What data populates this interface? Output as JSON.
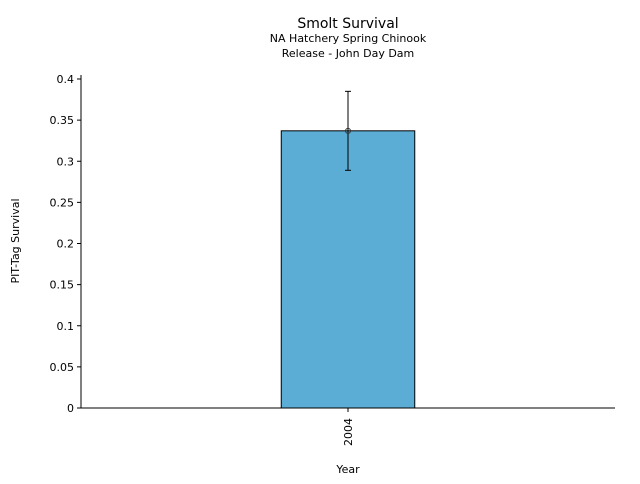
{
  "chart_data": {
    "type": "bar",
    "title": "Smolt Survival",
    "subtitle": [
      "NA Hatchery Spring Chinook",
      "Release - John Day Dam"
    ],
    "xlabel": "Year",
    "ylabel": "PIT-Tag Survival",
    "categories": [
      "2004"
    ],
    "values": [
      0.337
    ],
    "error_low": [
      0.289
    ],
    "error_high": [
      0.385
    ],
    "ylim": [
      0,
      0.4
    ],
    "yticks": [
      0,
      0.05,
      0.1,
      0.15,
      0.2,
      0.25,
      0.3,
      0.35,
      0.4
    ],
    "ytick_labels": [
      "0",
      "0.05",
      "0.1",
      "0.15",
      "0.2",
      "0.25",
      "0.3",
      "0.35",
      "0.4"
    ],
    "bar_color": "#5badd6",
    "grid": false
  }
}
